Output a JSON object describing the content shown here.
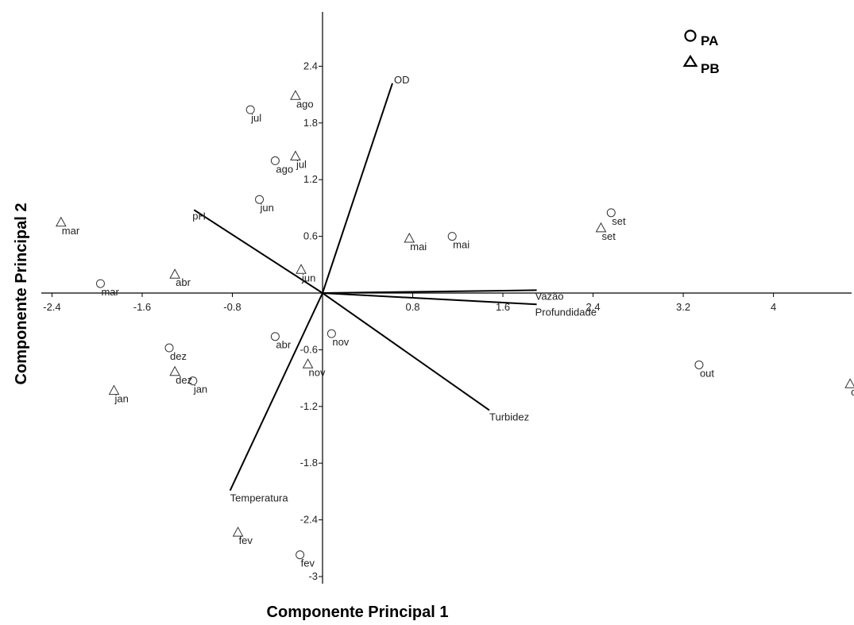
{
  "chart_data": {
    "type": "scatter",
    "title": "",
    "xlabel": "Componente Principal 1",
    "ylabel": "Componente Principal 2",
    "xlim": [
      -2.55,
      4.55
    ],
    "ylim": [
      -3.05,
      3.05
    ],
    "x_ticks": [
      {
        "value": -2.4,
        "label": "-2.4"
      },
      {
        "value": -1.6,
        "label": "-1.6"
      },
      {
        "value": -0.8,
        "label": "-0.8"
      },
      {
        "value": 0.8,
        "label": "0.8"
      },
      {
        "value": 1.6,
        "label": "1.6"
      },
      {
        "value": 2.4,
        "label": "2.4"
      },
      {
        "value": 3.2,
        "label": "3.2"
      },
      {
        "value": 4.0,
        "label": "4"
      }
    ],
    "y_ticks": [
      {
        "value": 2.4,
        "label": "2.4"
      },
      {
        "value": 1.8,
        "label": "1.8"
      },
      {
        "value": 1.2,
        "label": "1.2"
      },
      {
        "value": 0.6,
        "label": "0.6"
      },
      {
        "value": -0.6,
        "label": "-0.6"
      },
      {
        "value": -1.2,
        "label": "-1.2"
      },
      {
        "value": -1.8,
        "label": "-1.8"
      },
      {
        "value": -2.4,
        "label": "-2.4"
      },
      {
        "value": -3.0,
        "label": "-3"
      }
    ],
    "grid": false,
    "legend_position": "top-right",
    "series": [
      {
        "name": "PA",
        "marker": "circle",
        "points": [
          {
            "label": "jul",
            "x": -0.64,
            "y": 1.94
          },
          {
            "label": "ago",
            "x": -0.42,
            "y": 1.4
          },
          {
            "label": "jun",
            "x": -0.56,
            "y": 0.99
          },
          {
            "label": "mai",
            "x": 1.15,
            "y": 0.6
          },
          {
            "label": "set",
            "x": 2.56,
            "y": 0.85
          },
          {
            "label": "mar",
            "x": -1.97,
            "y": 0.1
          },
          {
            "label": "abr",
            "x": -0.42,
            "y": -0.46
          },
          {
            "label": "nov",
            "x": 0.08,
            "y": -0.43
          },
          {
            "label": "dez",
            "x": -1.36,
            "y": -0.58
          },
          {
            "label": "jan",
            "x": -1.15,
            "y": -0.93
          },
          {
            "label": "out",
            "x": 3.34,
            "y": -0.76
          },
          {
            "label": "fev",
            "x": -0.2,
            "y": -2.77
          }
        ]
      },
      {
        "name": "PB",
        "marker": "triangle",
        "points": [
          {
            "label": "ago",
            "x": -0.24,
            "y": 2.09
          },
          {
            "label": "jul",
            "x": -0.24,
            "y": 1.45
          },
          {
            "label": "mar",
            "x": -2.32,
            "y": 0.75
          },
          {
            "label": "mai",
            "x": 0.77,
            "y": 0.58
          },
          {
            "label": "set",
            "x": 2.47,
            "y": 0.69
          },
          {
            "label": "abr",
            "x": -1.31,
            "y": 0.2
          },
          {
            "label": "jun",
            "x": -0.19,
            "y": 0.25
          },
          {
            "label": "nov",
            "x": -0.13,
            "y": -0.75
          },
          {
            "label": "dez",
            "x": -1.31,
            "y": -0.83
          },
          {
            "label": "jan",
            "x": -1.85,
            "y": -1.03
          },
          {
            "label": "ou",
            "x": 4.68,
            "y": -0.96
          },
          {
            "label": "fev",
            "x": -0.75,
            "y": -2.53
          }
        ]
      }
    ],
    "loading_vectors": [
      {
        "name": "OD",
        "x": 0.62,
        "y": 2.22
      },
      {
        "name": "pH",
        "x": -1.14,
        "y": 0.88
      },
      {
        "name": "Vazão",
        "x": 1.9,
        "y": 0.03
      },
      {
        "name": "Profundidade",
        "x": 1.9,
        "y": -0.12
      },
      {
        "name": "Turbidez",
        "x": 1.48,
        "y": -1.24
      },
      {
        "name": "Temperatura",
        "x": -0.82,
        "y": -2.09
      }
    ],
    "colors": {
      "axis": "#000000",
      "marker": "#333333",
      "text": "#222222"
    }
  }
}
